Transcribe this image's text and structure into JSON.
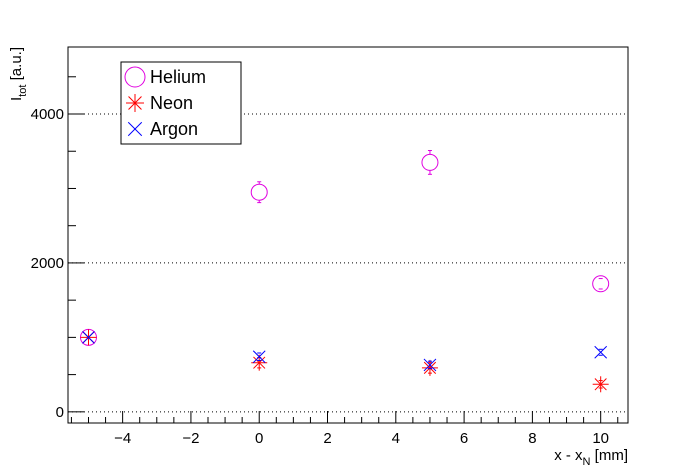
{
  "chart_data": {
    "type": "scatter",
    "title": "",
    "xlabel": {
      "main": "x - x",
      "sub": "N",
      "unit": " [mm]"
    },
    "ylabel": {
      "main": "I",
      "sub": "tot",
      "unit": " [a.u.]"
    },
    "xlim": [
      -5.6,
      10.8
    ],
    "ylim": [
      -150,
      4900
    ],
    "x_ticks": [
      -4,
      -2,
      0,
      2,
      4,
      6,
      8,
      10
    ],
    "x_tick_labels": [
      "−4",
      "−2",
      "0",
      "2",
      "4",
      "6",
      "8",
      "10"
    ],
    "y_ticks": [
      0,
      2000,
      4000
    ],
    "y_tick_labels": [
      "0",
      "2000",
      "4000"
    ],
    "y_minor_step": 500,
    "x_minor_step": 0.5,
    "grid": {
      "x": false,
      "y": true,
      "style": "dotted"
    },
    "legend_position": "top-left",
    "series": [
      {
        "name": "Helium",
        "marker": "open-circle",
        "color": "#e000e0",
        "x": [
          -5,
          0,
          5,
          10
        ],
        "y": [
          1000,
          2950,
          3350,
          1720
        ],
        "err": [
          0,
          140,
          160,
          70
        ]
      },
      {
        "name": "Neon",
        "marker": "star",
        "color": "#ff0000",
        "x": [
          -5,
          0,
          5,
          10
        ],
        "y": [
          1000,
          660,
          590,
          370
        ],
        "err": [
          0,
          70,
          70,
          50
        ]
      },
      {
        "name": "Argon",
        "marker": "x-cross",
        "color": "#0000ff",
        "x": [
          -5,
          0,
          5,
          10
        ],
        "y": [
          1000,
          740,
          630,
          800
        ],
        "err": [
          0,
          50,
          50,
          40
        ]
      }
    ]
  }
}
